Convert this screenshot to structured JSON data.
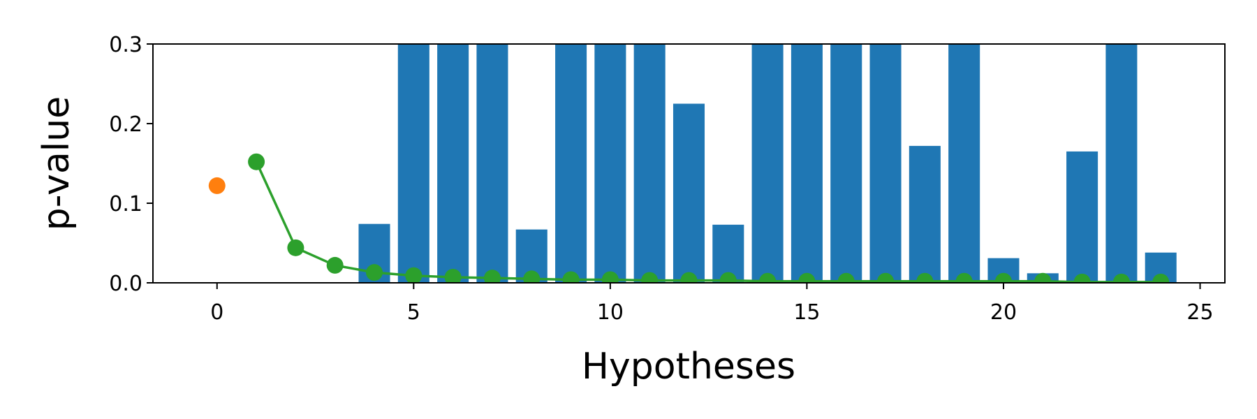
{
  "chart_data": {
    "type": "combo",
    "xlabel": "Hypotheses",
    "ylabel": "p-value",
    "xlim": [
      -1.63,
      25.63
    ],
    "ylim": [
      0,
      0.3
    ],
    "xticks": [
      0,
      5,
      10,
      15,
      20,
      25
    ],
    "yticks": [
      {
        "value": 0,
        "label": "0.0"
      },
      0.1,
      0.2,
      0.3
    ],
    "series": [
      {
        "type": "bar",
        "color": "#1f77b4",
        "x": [
          4,
          5,
          6,
          7,
          8,
          9,
          10,
          11,
          12,
          13,
          14,
          15,
          16,
          17,
          18,
          19,
          20,
          21,
          22,
          23,
          24
        ],
        "values": [
          0.074,
          0.3,
          0.3,
          0.3,
          0.067,
          0.3,
          0.3,
          0.3,
          0.225,
          0.073,
          0.3,
          0.3,
          0.3,
          0.3,
          0.172,
          0.3,
          0.031,
          0.012,
          0.165,
          0.3,
          0.038
        ]
      },
      {
        "type": "scatter",
        "color": "#ff7f0e",
        "x": [
          0
        ],
        "values": [
          0.122
        ]
      },
      {
        "type": "line",
        "color": "#2ca02c",
        "x": [
          1,
          2,
          3,
          4,
          5,
          6,
          7,
          8,
          9,
          10,
          11,
          12,
          13,
          14,
          15,
          16,
          17,
          18,
          19,
          20,
          21,
          22,
          23,
          24
        ],
        "values": [
          0.152,
          0.044,
          0.022,
          0.013,
          0.009,
          0.007,
          0.006,
          0.005,
          0.004,
          0.004,
          0.003,
          0.003,
          0.003,
          0.002,
          0.002,
          0.002,
          0.002,
          0.002,
          0.002,
          0.002,
          0.002,
          0.001,
          0.001,
          0.001
        ]
      }
    ]
  }
}
